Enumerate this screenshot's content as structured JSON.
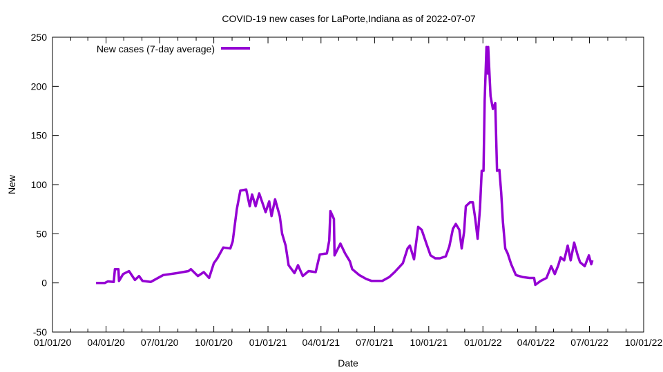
{
  "chart_data": {
    "type": "line",
    "title": "COVID-19 new cases for LaPorte,Indiana as of 2022-07-07",
    "xlabel": "Date",
    "ylabel": "New",
    "xlim": [
      "2020-01-01",
      "2022-10-01"
    ],
    "ylim": [
      -50,
      250
    ],
    "yticks": [
      -50,
      0,
      50,
      100,
      150,
      200,
      250
    ],
    "xticks": [
      {
        "date": "2020-01-01",
        "label": "01/01/20"
      },
      {
        "date": "2020-04-01",
        "label": "04/01/20"
      },
      {
        "date": "2020-07-01",
        "label": "07/01/20"
      },
      {
        "date": "2020-10-01",
        "label": "10/01/20"
      },
      {
        "date": "2021-01-01",
        "label": "01/01/21"
      },
      {
        "date": "2021-04-01",
        "label": "04/01/21"
      },
      {
        "date": "2021-07-01",
        "label": "07/01/21"
      },
      {
        "date": "2021-10-01",
        "label": "10/01/21"
      },
      {
        "date": "2022-01-01",
        "label": "01/01/22"
      },
      {
        "date": "2022-04-01",
        "label": "04/01/22"
      },
      {
        "date": "2022-07-01",
        "label": "07/01/22"
      },
      {
        "date": "2022-10-01",
        "label": "10/01/22"
      }
    ],
    "grid": false,
    "legend_position": "top-left",
    "series": [
      {
        "name": "New cases (7-day average)",
        "color": "#9400D3",
        "x": [
          "2020-03-15",
          "2020-03-30",
          "2020-04-04",
          "2020-04-14",
          "2020-04-16",
          "2020-04-22",
          "2020-04-23",
          "2020-04-30",
          "2020-05-10",
          "2020-05-20",
          "2020-05-27",
          "2020-06-02",
          "2020-06-16",
          "2020-07-07",
          "2020-07-31",
          "2020-08-19",
          "2020-08-23",
          "2020-09-04",
          "2020-09-14",
          "2020-09-23",
          "2020-10-01",
          "2020-10-07",
          "2020-10-17",
          "2020-10-29",
          "2020-11-02",
          "2020-11-09",
          "2020-11-15",
          "2020-11-25",
          "2020-12-01",
          "2020-12-05",
          "2020-12-11",
          "2020-12-17",
          "2020-12-28",
          "2021-01-03",
          "2021-01-07",
          "2021-01-13",
          "2021-01-21",
          "2021-01-25",
          "2021-01-31",
          "2021-02-05",
          "2021-02-15",
          "2021-02-21",
          "2021-03-01",
          "2021-03-11",
          "2021-03-23",
          "2021-03-30",
          "2021-04-11",
          "2021-04-15",
          "2021-04-17",
          "2021-04-23",
          "2021-04-24",
          "2021-05-04",
          "2021-05-12",
          "2021-05-20",
          "2021-05-24",
          "2021-06-05",
          "2021-06-17",
          "2021-06-26",
          "2021-07-14",
          "2021-07-26",
          "2021-08-04",
          "2021-08-18",
          "2021-08-26",
          "2021-08-30",
          "2021-09-06",
          "2021-09-13",
          "2021-09-19",
          "2021-09-27",
          "2021-10-04",
          "2021-10-12",
          "2021-10-20",
          "2021-10-30",
          "2021-11-05",
          "2021-11-11",
          "2021-11-16",
          "2021-11-22",
          "2021-11-26",
          "2021-11-30",
          "2021-12-03",
          "2021-12-10",
          "2021-12-15",
          "2021-12-19",
          "2021-12-23",
          "2021-12-27",
          "2021-12-30",
          "2022-01-02",
          "2022-01-04",
          "2022-01-07",
          "2022-01-09",
          "2022-01-10",
          "2022-01-14",
          "2022-01-18",
          "2022-01-22",
          "2022-01-25",
          "2022-01-29",
          "2022-02-01",
          "2022-02-04",
          "2022-02-08",
          "2022-02-12",
          "2022-02-18",
          "2022-02-26",
          "2022-03-09",
          "2022-03-21",
          "2022-03-29",
          "2022-03-31",
          "2022-04-09",
          "2022-04-19",
          "2022-04-27",
          "2022-05-03",
          "2022-05-09",
          "2022-05-13",
          "2022-05-19",
          "2022-05-25",
          "2022-05-30",
          "2022-06-05",
          "2022-06-11",
          "2022-06-15",
          "2022-06-23",
          "2022-06-30",
          "2022-07-04",
          "2022-07-06"
        ],
        "y": [
          0,
          0,
          1.5,
          1,
          14,
          14,
          2,
          9,
          12,
          3,
          7,
          2,
          1,
          8,
          10,
          12,
          14,
          7,
          11,
          5,
          20,
          25,
          36,
          35,
          42,
          75,
          94,
          95,
          78,
          90,
          78,
          91,
          72,
          83,
          68,
          85,
          68,
          50,
          38,
          18,
          10,
          18,
          7,
          12,
          11,
          29,
          30,
          43,
          73,
          65,
          28,
          40,
          30,
          22,
          14,
          8,
          4,
          2,
          2,
          6,
          11,
          20,
          35,
          38,
          24,
          57,
          54,
          40,
          28,
          25,
          25,
          27,
          37,
          55,
          60,
          54,
          35,
          52,
          78,
          82,
          82,
          65,
          45,
          76,
          114,
          114,
          186,
          240,
          213,
          240,
          190,
          177,
          183,
          114,
          115,
          92,
          62,
          35,
          30,
          19,
          8,
          6,
          5,
          5,
          -2,
          2,
          5,
          17,
          9,
          18,
          26,
          23,
          38,
          23,
          41,
          28,
          21,
          17,
          28,
          19,
          23
        ]
      }
    ]
  }
}
